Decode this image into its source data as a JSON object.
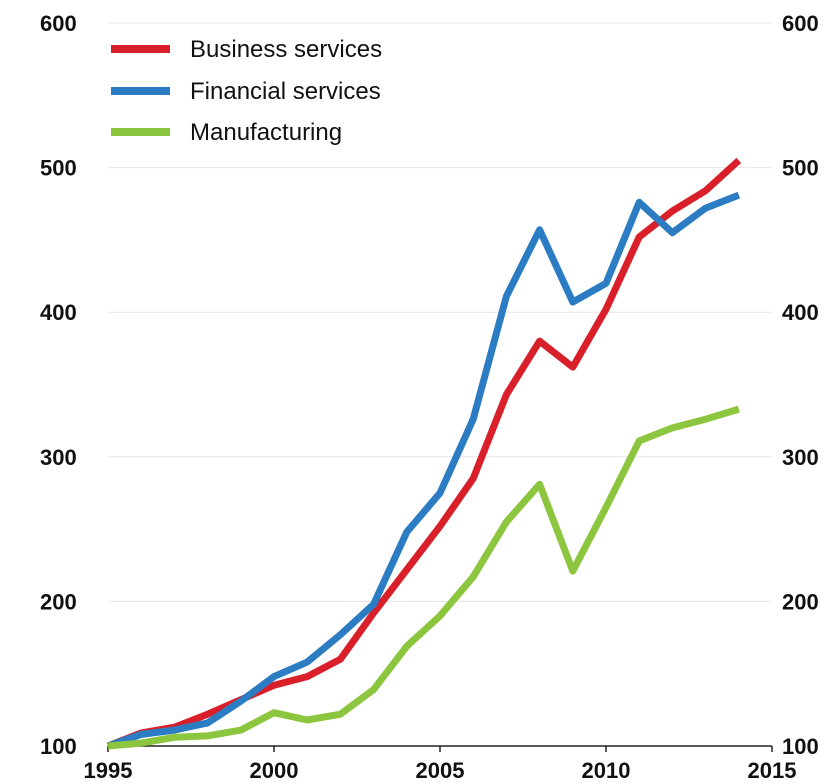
{
  "chart_data": {
    "type": "line",
    "title": "",
    "xlabel": "",
    "ylabel": "",
    "xlim": [
      1995,
      2015
    ],
    "ylim": [
      100,
      600
    ],
    "x_ticks": [
      1995,
      2000,
      2005,
      2010,
      2015
    ],
    "y_ticks": [
      100,
      200,
      300,
      400,
      500,
      600
    ],
    "y_axis_both_sides": true,
    "grid": "horizontal",
    "legend_position": "top-left",
    "x": [
      1995,
      1996,
      1997,
      1998,
      1999,
      2000,
      2001,
      2002,
      2003,
      2004,
      2005,
      2006,
      2007,
      2008,
      2009,
      2010,
      2011,
      2012,
      2013,
      2014
    ],
    "series": [
      {
        "name": "Business services",
        "color": "#d9202a",
        "values": [
          100,
          109,
          113,
          122,
          132,
          142,
          148,
          160,
          192,
          222,
          252,
          285,
          343,
          380,
          362,
          402,
          452,
          470,
          484,
          505
        ]
      },
      {
        "name": "Financial services",
        "color": "#2b7cc3",
        "values": [
          100,
          108,
          111,
          116,
          131,
          148,
          158,
          177,
          198,
          248,
          275,
          326,
          411,
          457,
          407,
          420,
          476,
          455,
          472,
          481
        ]
      },
      {
        "name": "Manufacturing",
        "color": "#8cc63f",
        "values": [
          100,
          102,
          106,
          107,
          111,
          123,
          118,
          122,
          139,
          169,
          190,
          217,
          255,
          281,
          221,
          265,
          311,
          320,
          326,
          333
        ]
      }
    ]
  }
}
